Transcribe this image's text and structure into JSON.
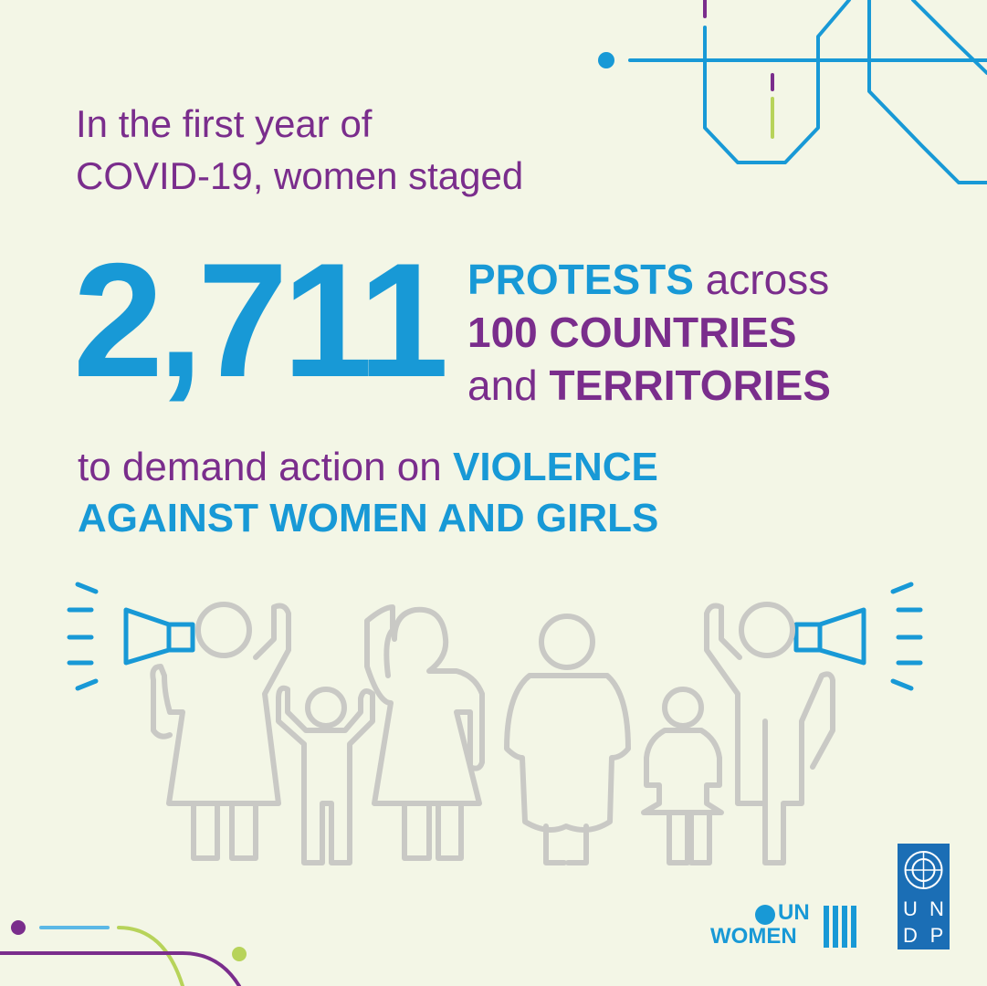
{
  "intro": {
    "lines": [
      "In the first year of",
      "COVID-19, women staged"
    ]
  },
  "stat": {
    "number": "2,711",
    "line1": {
      "strong": "PROTESTS",
      "rest": "across"
    },
    "line2": {
      "strong": "100 COUNTRIES"
    },
    "line3": {
      "lead": "and",
      "strong": "TERRITORIES"
    }
  },
  "closing": {
    "lead": "to demand action on",
    "strong1": "VIOLENCE",
    "strong2": "AGAINST WOMEN AND GIRLS"
  },
  "logos": {
    "un_women": {
      "top": "UN",
      "bottom": "WOMEN"
    },
    "undp": {
      "letters": [
        "U",
        "N",
        "D",
        "P"
      ]
    }
  }
}
